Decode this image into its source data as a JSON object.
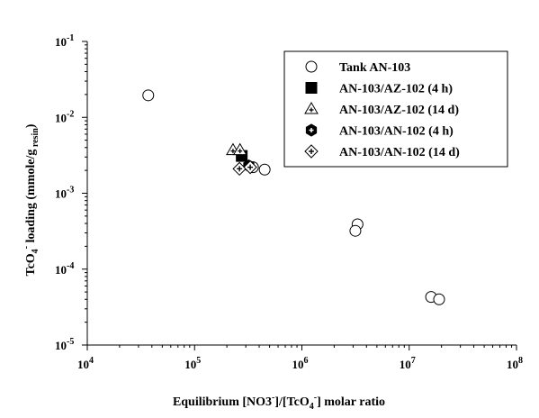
{
  "chart_data": {
    "type": "scatter",
    "title": "",
    "xlabel": {
      "main": "Equilibrium [NO3",
      "sup1": "-",
      "mid": "]/[TcO",
      "sub": "4",
      "sup2": "-",
      "end": "] molar ratio"
    },
    "ylabel": {
      "main": "TcO",
      "sub": "4",
      "sup": "-",
      "rest": " loading (mmole/g",
      "sub2": " resin",
      "end": ")"
    },
    "x_scale": "log",
    "y_scale": "log",
    "xlim": [
      10000,
      100000000
    ],
    "ylim": [
      1e-05,
      0.1
    ],
    "x_ticks": [
      {
        "value": 10000,
        "base": "10",
        "exp": "4"
      },
      {
        "value": 100000,
        "base": "10",
        "exp": "5"
      },
      {
        "value": 1000000,
        "base": "10",
        "exp": "6"
      },
      {
        "value": 10000000,
        "base": "10",
        "exp": "7"
      },
      {
        "value": 100000000,
        "base": "10",
        "exp": "8"
      }
    ],
    "y_ticks": [
      {
        "value": 0.1,
        "base": "10",
        "exp": "-1"
      },
      {
        "value": 0.01,
        "base": "10",
        "exp": "-2"
      },
      {
        "value": 0.001,
        "base": "10",
        "exp": "-3"
      },
      {
        "value": 0.0001,
        "base": "10",
        "exp": "-4"
      },
      {
        "value": 1e-05,
        "base": "10",
        "exp": "-5"
      }
    ],
    "grid": false,
    "legend_position": "top-right",
    "series": [
      {
        "name": "Tank AN-103",
        "marker": "open-circle",
        "points": [
          {
            "x": 37000,
            "y": 0.0195
          },
          {
            "x": 350000,
            "y": 0.0022
          },
          {
            "x": 450000,
            "y": 0.00205
          },
          {
            "x": 3300000,
            "y": 0.00039
          },
          {
            "x": 3150000,
            "y": 0.00032
          },
          {
            "x": 16000000,
            "y": 4.3e-05
          },
          {
            "x": 19000000,
            "y": 4e-05
          }
        ]
      },
      {
        "name": "AN-103/AZ-102 (4 h)",
        "marker": "filled-square",
        "points": [
          {
            "x": 275000,
            "y": 0.0031
          }
        ]
      },
      {
        "name": "AN-103/AZ-102 (14 d)",
        "marker": "triangle-plus",
        "points": [
          {
            "x": 228000,
            "y": 0.0037
          },
          {
            "x": 265000,
            "y": 0.0037
          }
        ]
      },
      {
        "name": "AN-103/AN-102 (4 h)",
        "marker": "filled-hexagon",
        "points": [
          {
            "x": 320000,
            "y": 0.0023
          }
        ]
      },
      {
        "name": "AN-103/AN-102 (14 d)",
        "marker": "diamond-plus",
        "points": [
          {
            "x": 262000,
            "y": 0.0021
          },
          {
            "x": 330000,
            "y": 0.0022
          }
        ]
      }
    ]
  }
}
